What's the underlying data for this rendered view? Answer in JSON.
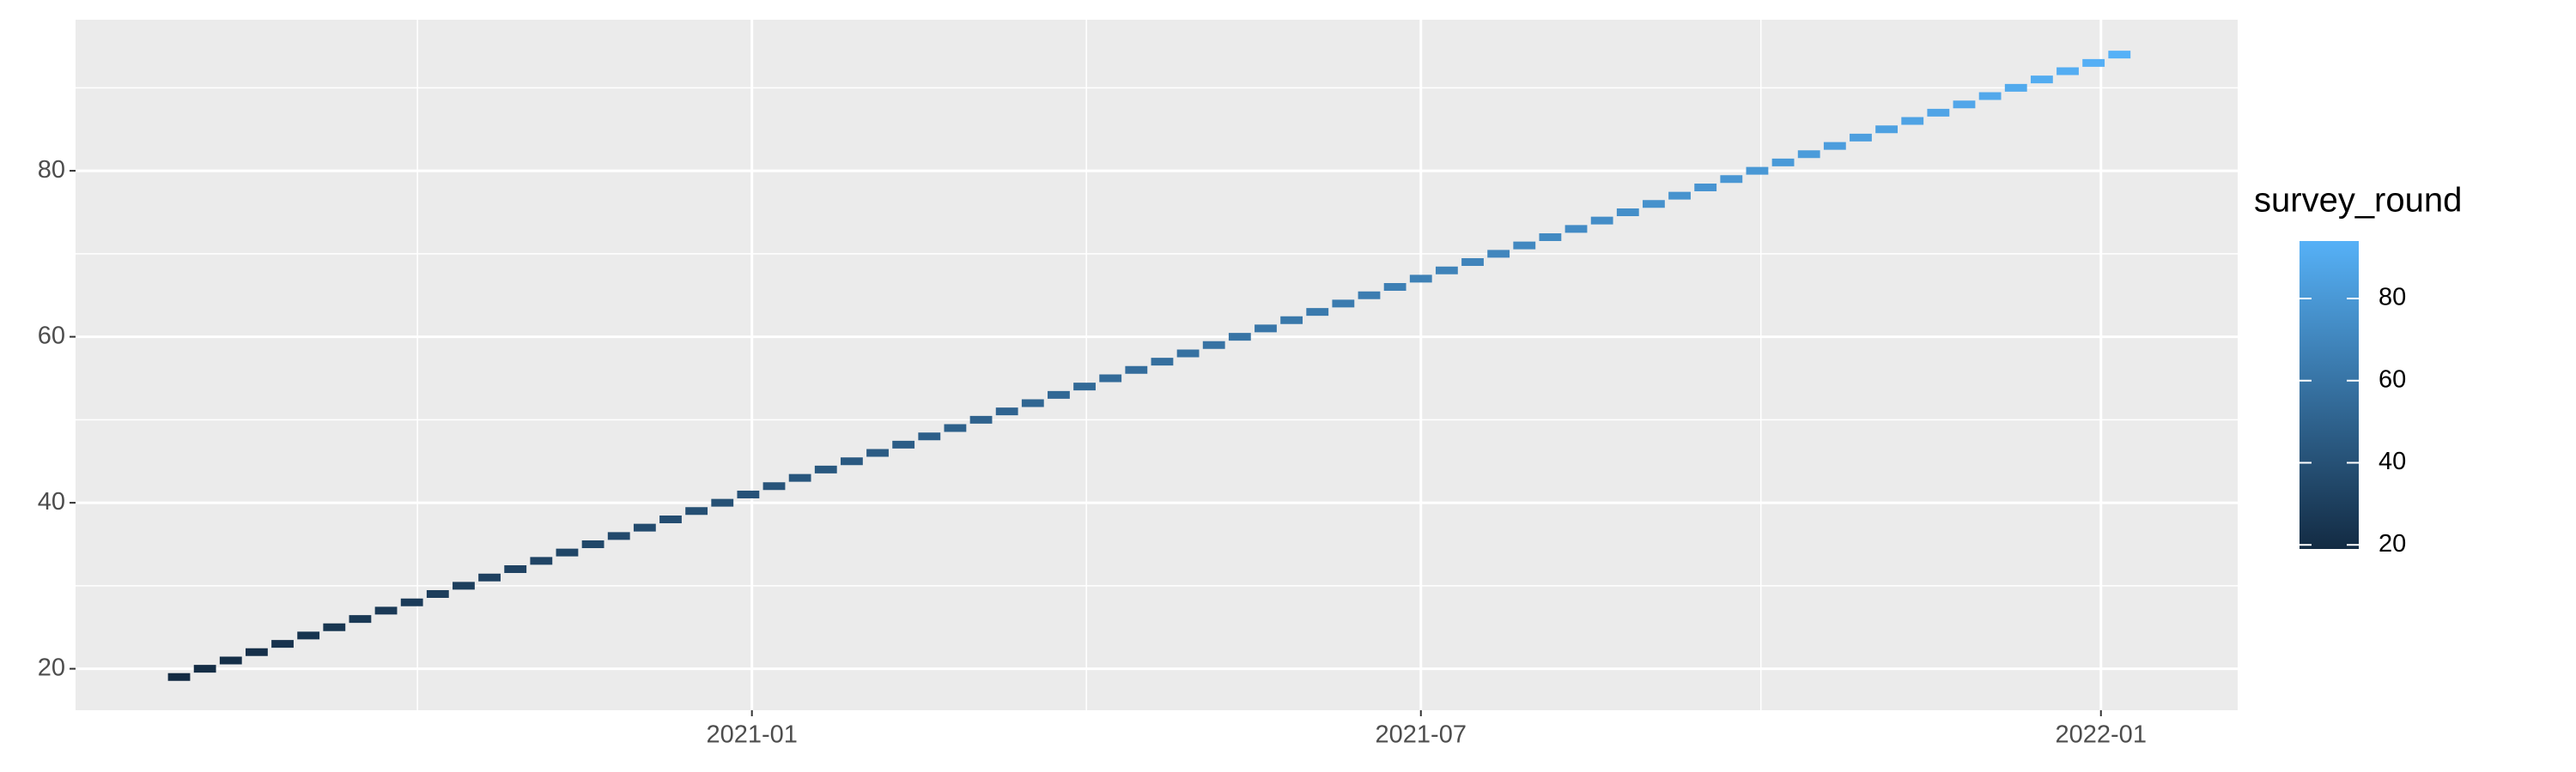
{
  "chart_data": {
    "type": "segment",
    "x": [
      "2020-07-27",
      "2020-08-03",
      "2020-08-10",
      "2020-08-17",
      "2020-08-24",
      "2020-08-31",
      "2020-09-07",
      "2020-09-14",
      "2020-09-21",
      "2020-09-28",
      "2020-10-05",
      "2020-10-12",
      "2020-10-19",
      "2020-10-26",
      "2020-11-02",
      "2020-11-09",
      "2020-11-16",
      "2020-11-23",
      "2020-11-30",
      "2020-12-07",
      "2020-12-14",
      "2020-12-21",
      "2020-12-28",
      "2021-01-04",
      "2021-01-11",
      "2021-01-18",
      "2021-01-25",
      "2021-02-01",
      "2021-02-08",
      "2021-02-15",
      "2021-02-22",
      "2021-03-01",
      "2021-03-08",
      "2021-03-15",
      "2021-03-22",
      "2021-03-29",
      "2021-04-05",
      "2021-04-12",
      "2021-04-19",
      "2021-04-26",
      "2021-05-03",
      "2021-05-10",
      "2021-05-17",
      "2021-05-24",
      "2021-05-31",
      "2021-06-07",
      "2021-06-14",
      "2021-06-21",
      "2021-06-28",
      "2021-07-05",
      "2021-07-12",
      "2021-07-19",
      "2021-07-26",
      "2021-08-02",
      "2021-08-09",
      "2021-08-16",
      "2021-08-23",
      "2021-08-30",
      "2021-09-06",
      "2021-09-13",
      "2021-09-20",
      "2021-09-27",
      "2021-10-04",
      "2021-10-11",
      "2021-10-18",
      "2021-10-25",
      "2021-11-01",
      "2021-11-08",
      "2021-11-15",
      "2021-11-22",
      "2021-11-29",
      "2021-12-06",
      "2021-12-13",
      "2021-12-20",
      "2021-12-27",
      "2022-01-03"
    ],
    "x_end": [
      "2020-08-02",
      "2020-08-09",
      "2020-08-16",
      "2020-08-23",
      "2020-08-30",
      "2020-09-06",
      "2020-09-13",
      "2020-09-20",
      "2020-09-27",
      "2020-10-04",
      "2020-10-11",
      "2020-10-18",
      "2020-10-25",
      "2020-11-01",
      "2020-11-08",
      "2020-11-15",
      "2020-11-22",
      "2020-11-29",
      "2020-12-06",
      "2020-12-13",
      "2020-12-20",
      "2020-12-27",
      "2021-01-03",
      "2021-01-10",
      "2021-01-17",
      "2021-01-24",
      "2021-01-31",
      "2021-02-07",
      "2021-02-14",
      "2021-02-21",
      "2021-02-28",
      "2021-03-07",
      "2021-03-14",
      "2021-03-21",
      "2021-03-28",
      "2021-04-04",
      "2021-04-11",
      "2021-04-18",
      "2021-04-25",
      "2021-05-02",
      "2021-05-09",
      "2021-05-16",
      "2021-05-23",
      "2021-05-30",
      "2021-06-06",
      "2021-06-13",
      "2021-06-20",
      "2021-06-27",
      "2021-07-04",
      "2021-07-11",
      "2021-07-18",
      "2021-07-25",
      "2021-08-01",
      "2021-08-08",
      "2021-08-15",
      "2021-08-22",
      "2021-08-29",
      "2021-09-05",
      "2021-09-12",
      "2021-09-19",
      "2021-09-26",
      "2021-10-03",
      "2021-10-10",
      "2021-10-17",
      "2021-10-24",
      "2021-10-31",
      "2021-11-07",
      "2021-11-14",
      "2021-11-21",
      "2021-11-28",
      "2021-12-05",
      "2021-12-12",
      "2021-12-19",
      "2021-12-26",
      "2022-01-02",
      "2022-01-09"
    ],
    "values": [
      19,
      20,
      21,
      22,
      23,
      24,
      25,
      26,
      27,
      28,
      29,
      30,
      31,
      32,
      33,
      34,
      35,
      36,
      37,
      38,
      39,
      40,
      41,
      42,
      43,
      44,
      45,
      46,
      47,
      48,
      49,
      50,
      51,
      52,
      53,
      54,
      55,
      56,
      57,
      58,
      59,
      60,
      61,
      62,
      63,
      64,
      65,
      66,
      67,
      68,
      69,
      70,
      71,
      72,
      73,
      74,
      75,
      76,
      77,
      78,
      79,
      80,
      81,
      82,
      83,
      84,
      85,
      86,
      87,
      88,
      89,
      90,
      91,
      92,
      93,
      94
    ],
    "xlim": [
      "2020-07-02",
      "2022-02-07"
    ],
    "xticks": [
      {
        "value": "2021-01-01",
        "label": "2021-01"
      },
      {
        "value": "2021-07-01",
        "label": "2021-07"
      },
      {
        "value": "2022-01-01",
        "label": "2022-01"
      }
    ],
    "ylim": [
      15,
      98.2
    ],
    "yticks": [
      20,
      40,
      60,
      80
    ],
    "grid": true,
    "legend": {
      "title": "survey_round",
      "colors": [
        "#132B43",
        "#56B1F7"
      ],
      "limits": [
        19,
        94
      ],
      "ticks": [
        20,
        40,
        60,
        80
      ],
      "position": "right"
    }
  }
}
